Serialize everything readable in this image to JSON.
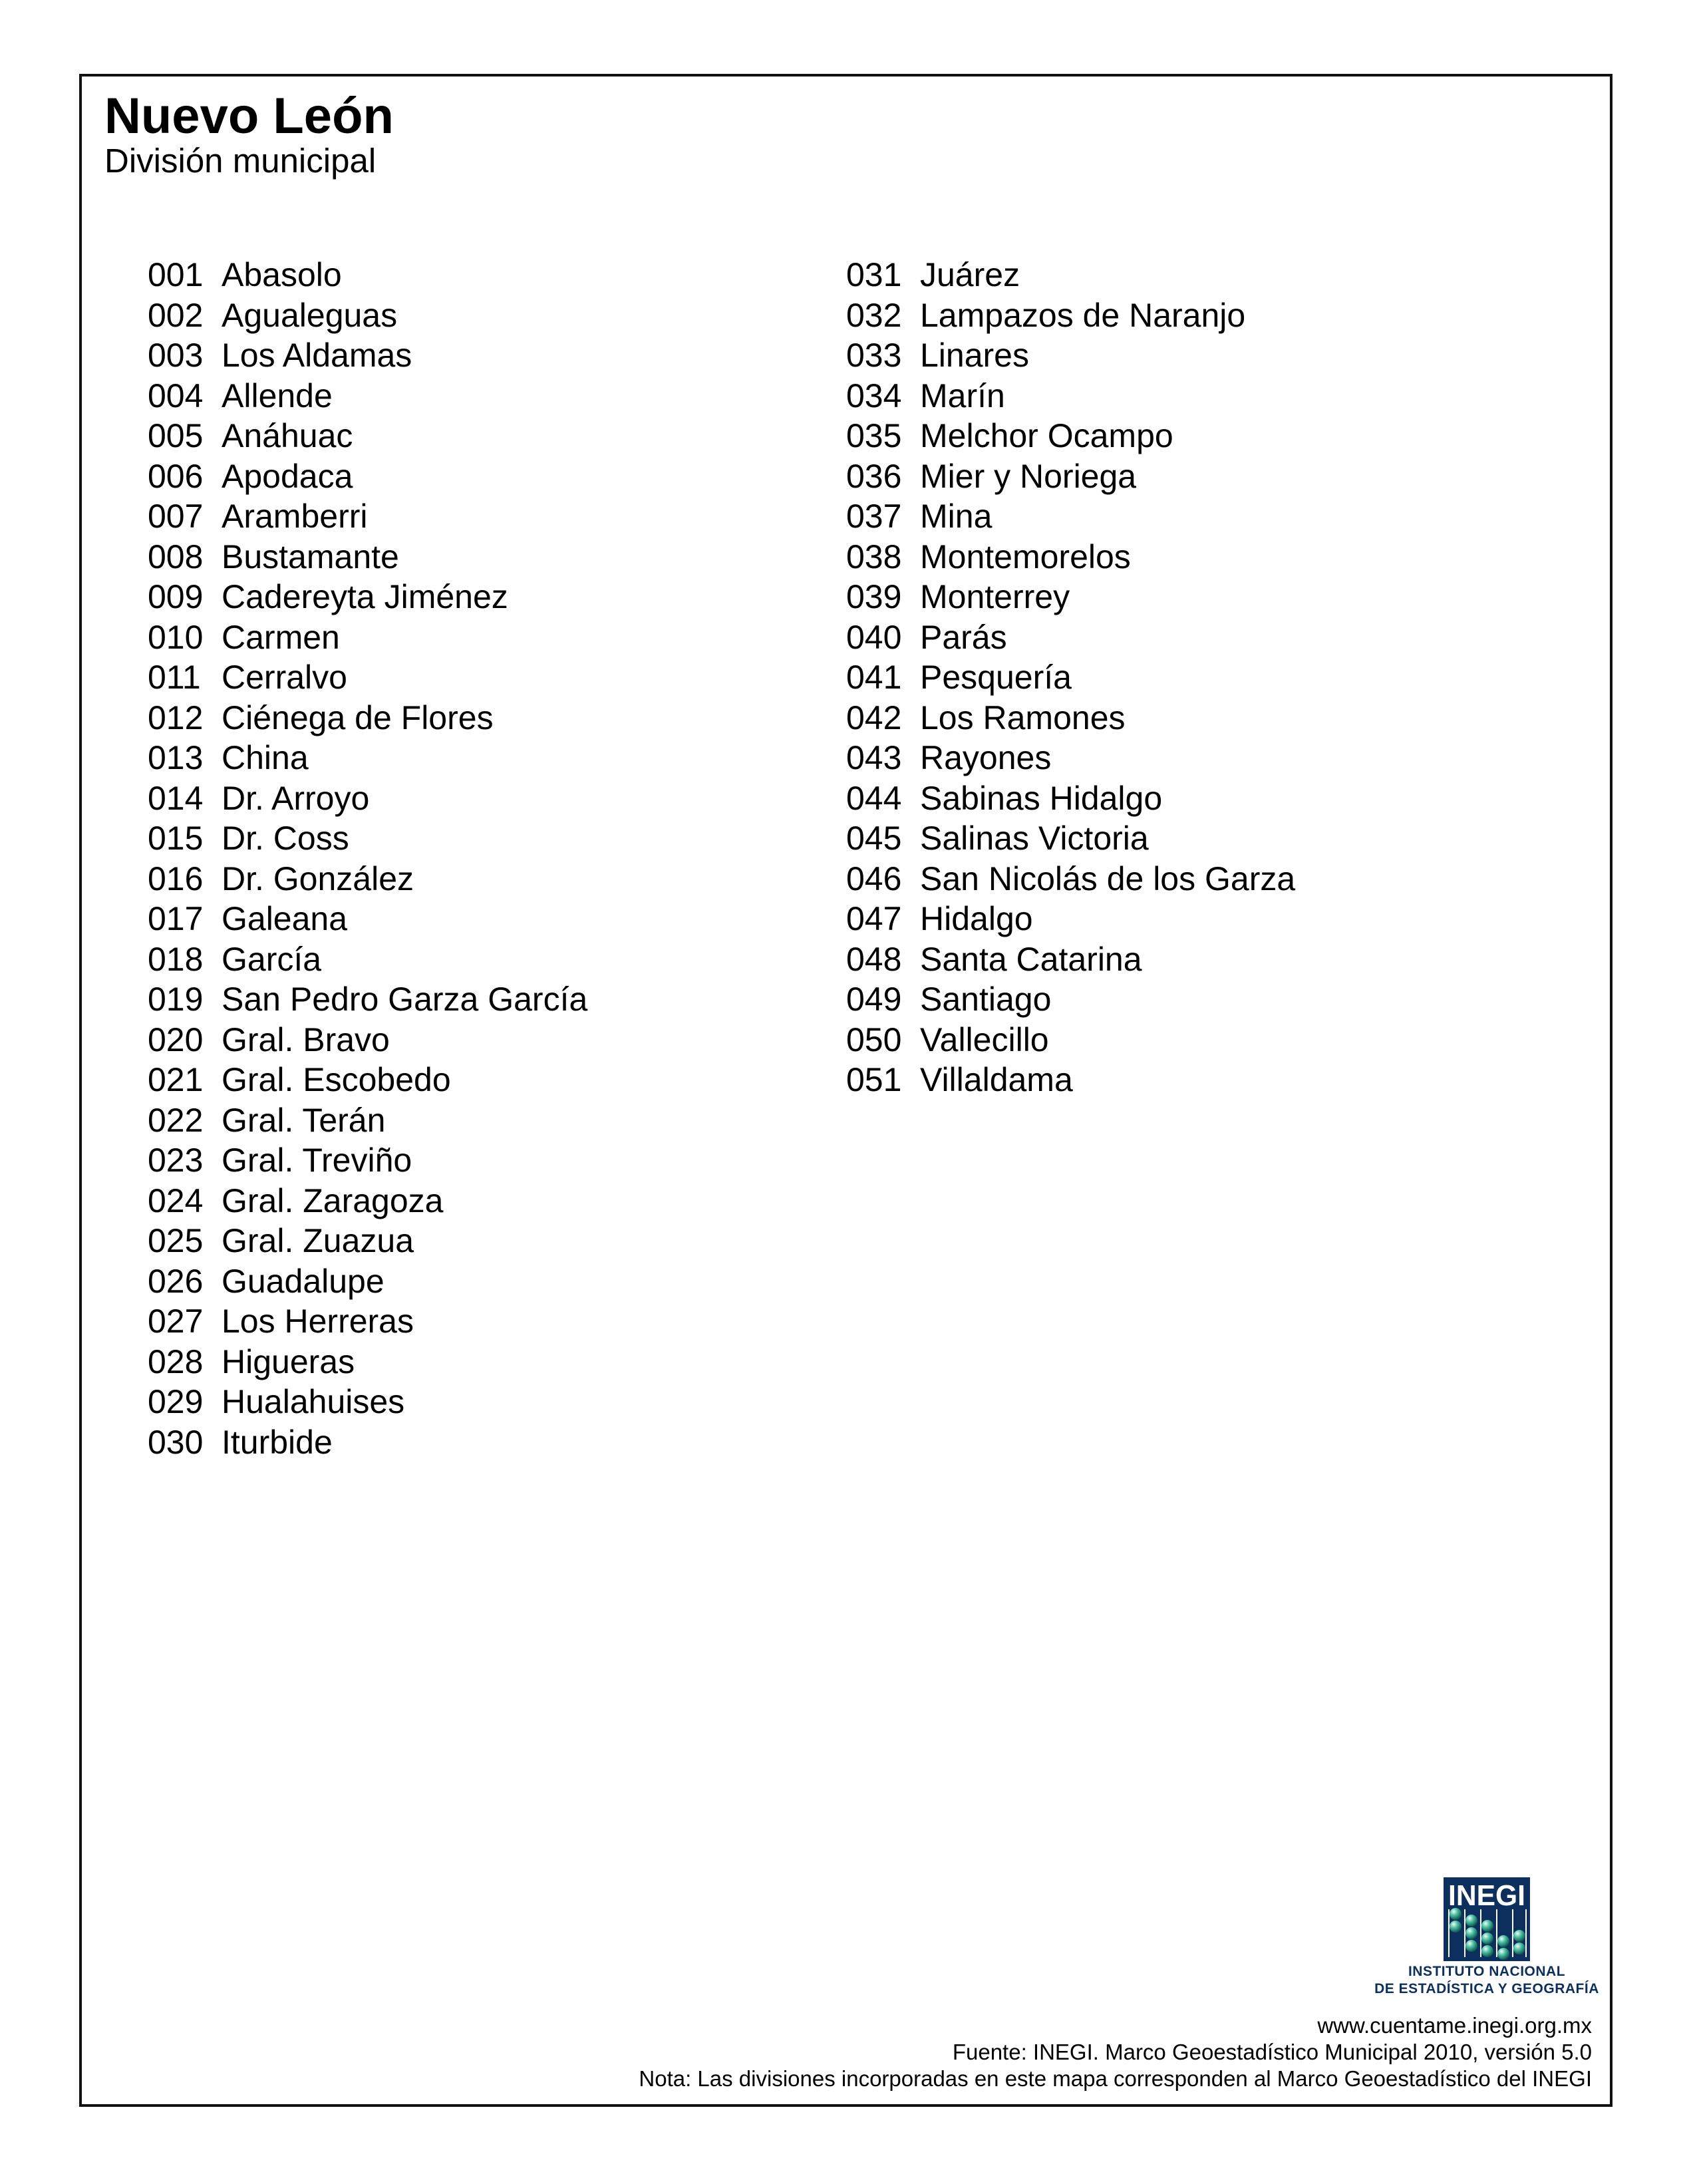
{
  "header": {
    "title": "Nuevo León",
    "subtitle": "División municipal"
  },
  "municipalities_left": [
    {
      "code": "001",
      "name": "Abasolo"
    },
    {
      "code": "002",
      "name": "Agualeguas"
    },
    {
      "code": "003",
      "name": "Los Aldamas"
    },
    {
      "code": "004",
      "name": "Allende"
    },
    {
      "code": "005",
      "name": "Anáhuac"
    },
    {
      "code": "006",
      "name": "Apodaca"
    },
    {
      "code": "007",
      "name": "Aramberri"
    },
    {
      "code": "008",
      "name": "Bustamante"
    },
    {
      "code": "009",
      "name": "Cadereyta Jiménez"
    },
    {
      "code": "010",
      "name": "Carmen"
    },
    {
      "code": "011",
      "name": "Cerralvo"
    },
    {
      "code": "012",
      "name": "Ciénega de Flores"
    },
    {
      "code": "013",
      "name": "China"
    },
    {
      "code": "014",
      "name": "Dr. Arroyo"
    },
    {
      "code": "015",
      "name": "Dr. Coss"
    },
    {
      "code": "016",
      "name": "Dr. González"
    },
    {
      "code": "017",
      "name": "Galeana"
    },
    {
      "code": "018",
      "name": "García"
    },
    {
      "code": "019",
      "name": "San Pedro Garza García"
    },
    {
      "code": "020",
      "name": "Gral. Bravo"
    },
    {
      "code": "021",
      "name": "Gral. Escobedo"
    },
    {
      "code": "022",
      "name": "Gral. Terán"
    },
    {
      "code": "023",
      "name": "Gral. Treviño"
    },
    {
      "code": "024",
      "name": "Gral. Zaragoza"
    },
    {
      "code": "025",
      "name": "Gral. Zuazua"
    },
    {
      "code": "026",
      "name": "Guadalupe"
    },
    {
      "code": "027",
      "name": "Los Herreras"
    },
    {
      "code": "028",
      "name": "Higueras"
    },
    {
      "code": "029",
      "name": "Hualahuises"
    },
    {
      "code": "030",
      "name": "Iturbide"
    }
  ],
  "municipalities_right": [
    {
      "code": "031",
      "name": "Juárez"
    },
    {
      "code": "032",
      "name": "Lampazos de Naranjo"
    },
    {
      "code": "033",
      "name": "Linares"
    },
    {
      "code": "034",
      "name": "Marín"
    },
    {
      "code": "035",
      "name": "Melchor Ocampo"
    },
    {
      "code": "036",
      "name": "Mier y Noriega"
    },
    {
      "code": "037",
      "name": "Mina"
    },
    {
      "code": "038",
      "name": "Montemorelos"
    },
    {
      "code": "039",
      "name": "Monterrey"
    },
    {
      "code": "040",
      "name": "Parás"
    },
    {
      "code": "041",
      "name": "Pesquería"
    },
    {
      "code": "042",
      "name": "Los Ramones"
    },
    {
      "code": "043",
      "name": "Rayones"
    },
    {
      "code": "044",
      "name": "Sabinas Hidalgo"
    },
    {
      "code": "045",
      "name": "Salinas Victoria"
    },
    {
      "code": "046",
      "name": "San Nicolás de los Garza"
    },
    {
      "code": "047",
      "name": "Hidalgo"
    },
    {
      "code": "048",
      "name": "Santa Catarina"
    },
    {
      "code": "049",
      "name": "Santiago"
    },
    {
      "code": "050",
      "name": "Vallecillo"
    },
    {
      "code": "051",
      "name": "Villaldama"
    }
  ],
  "logo": {
    "wordmark": "INEGI",
    "line1": "INSTITUTO NACIONAL",
    "line2": "DE ESTADÍSTICA Y GEOGRAFÍA",
    "navy": "#0d2f5e",
    "bead": "#3aa58f"
  },
  "footer": {
    "url": "www.cuentame.inegi.org.mx",
    "source": "Fuente: INEGI. Marco Geoestadístico Municipal 2010, versión 5.0",
    "note": "Nota: Las divisiones incorporadas en este mapa corresponden al Marco Geoestadístico del INEGI"
  }
}
